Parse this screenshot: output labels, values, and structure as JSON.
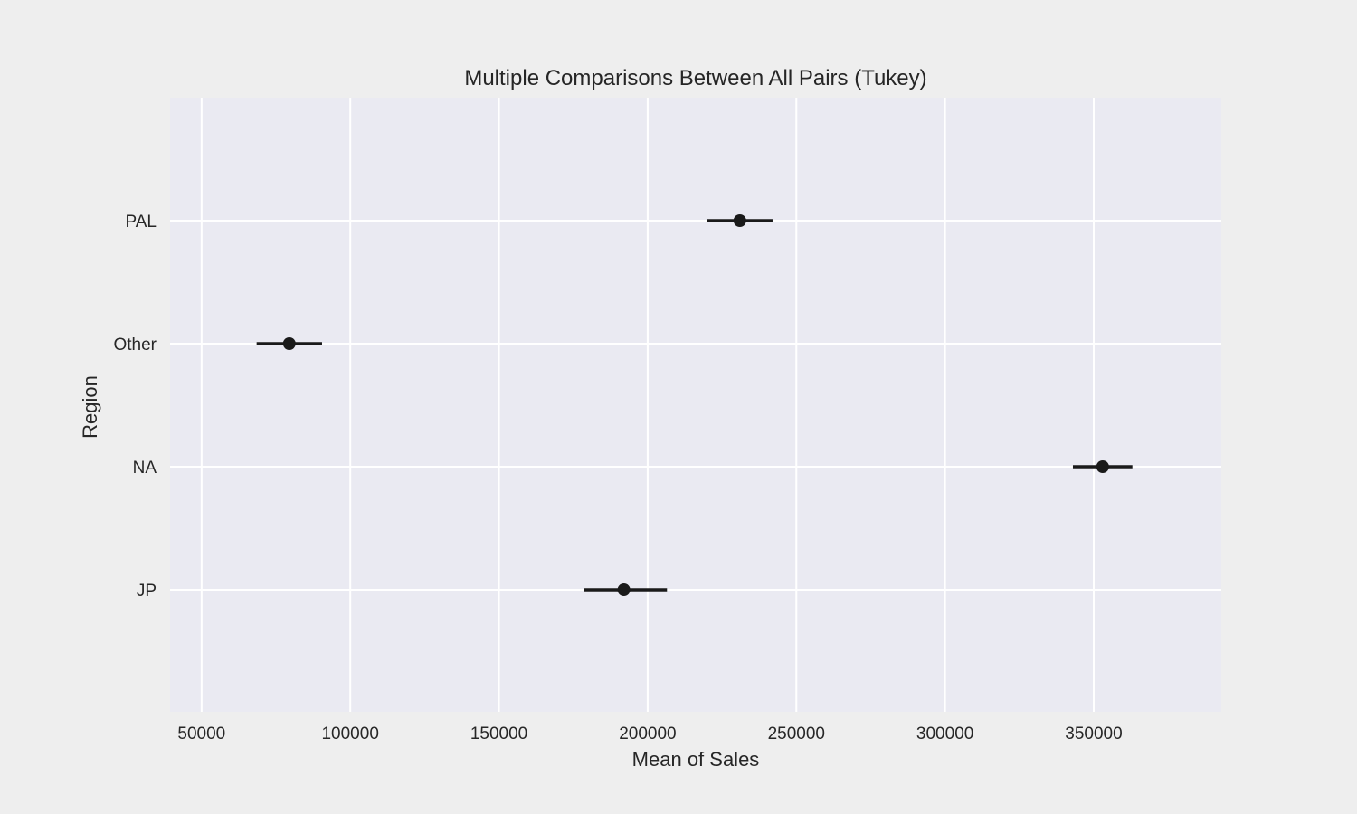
{
  "chart_data": {
    "type": "errorbar",
    "title": "Multiple Comparisons Between All Pairs (Tukey)",
    "xlabel": "Mean of Sales",
    "ylabel": "Region",
    "categories": [
      "PAL",
      "Other",
      "NA",
      "JP"
    ],
    "points": [
      {
        "category": "PAL",
        "mean": 231000,
        "lower": 220000,
        "upper": 242000
      },
      {
        "category": "Other",
        "mean": 79500,
        "lower": 68500,
        "upper": 90500
      },
      {
        "category": "NA",
        "mean": 353000,
        "lower": 343000,
        "upper": 363000
      },
      {
        "category": "JP",
        "mean": 192000,
        "lower": 178500,
        "upper": 206500
      }
    ],
    "x_ticks": [
      50000,
      100000,
      150000,
      200000,
      250000,
      300000,
      350000
    ],
    "x_tick_labels": [
      "50000",
      "100000",
      "150000",
      "200000",
      "250000",
      "300000",
      "350000"
    ],
    "xlim": [
      39400,
      392900
    ],
    "grid": true,
    "colors": {
      "figure_background": "#eeeeee",
      "plot_background": "#eaeaf2",
      "grid": "#ffffff",
      "marker": "#1a1a1a"
    }
  }
}
